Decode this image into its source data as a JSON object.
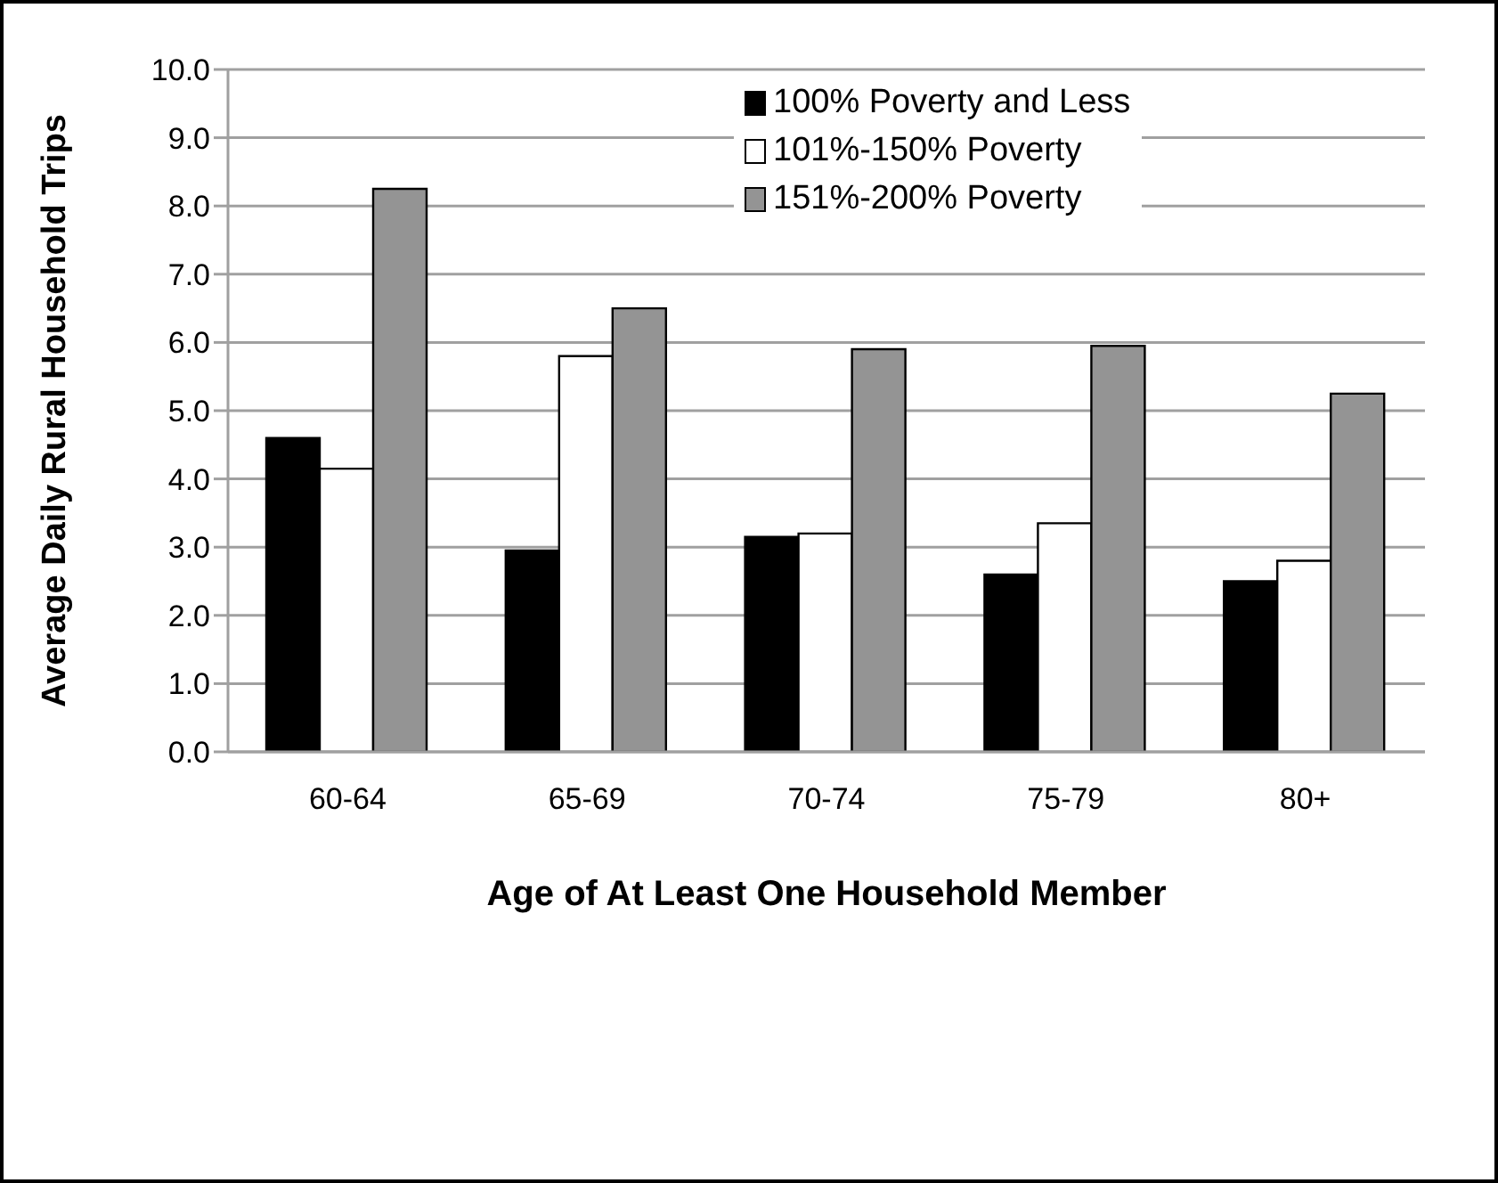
{
  "chart_data": {
    "type": "bar",
    "xlabel": "Age of At Least One Household Member",
    "ylabel": "Average Daily Rural Household Trips",
    "categories": [
      "60-64",
      "65-69",
      "70-74",
      "75-79",
      "80+"
    ],
    "series": [
      {
        "name": "100% Poverty and Less",
        "color": "#000000",
        "values": [
          4.6,
          2.95,
          3.15,
          2.6,
          2.5
        ]
      },
      {
        "name": "101%-150% Poverty",
        "color": "#ffffff",
        "values": [
          4.15,
          5.8,
          3.2,
          3.35,
          2.8
        ]
      },
      {
        "name": "151%-200% Poverty",
        "color": "#949494",
        "values": [
          8.25,
          6.5,
          5.9,
          5.95,
          5.25
        ]
      }
    ],
    "ylim": [
      0,
      10
    ],
    "yticks": [
      {
        "value": 0,
        "label": "0.0"
      },
      {
        "value": 1,
        "label": "1.0"
      },
      {
        "value": 2,
        "label": "2.0"
      },
      {
        "value": 3,
        "label": "3.0"
      },
      {
        "value": 4,
        "label": "4.0"
      },
      {
        "value": 5,
        "label": "5.0"
      },
      {
        "value": 6,
        "label": "6.0"
      },
      {
        "value": 7,
        "label": "7.0"
      },
      {
        "value": 8,
        "label": "8.0"
      },
      {
        "value": 9,
        "label": "9.0"
      },
      {
        "value": 10,
        "label": "10.0"
      }
    ],
    "grid": "y",
    "legend": "top right"
  }
}
